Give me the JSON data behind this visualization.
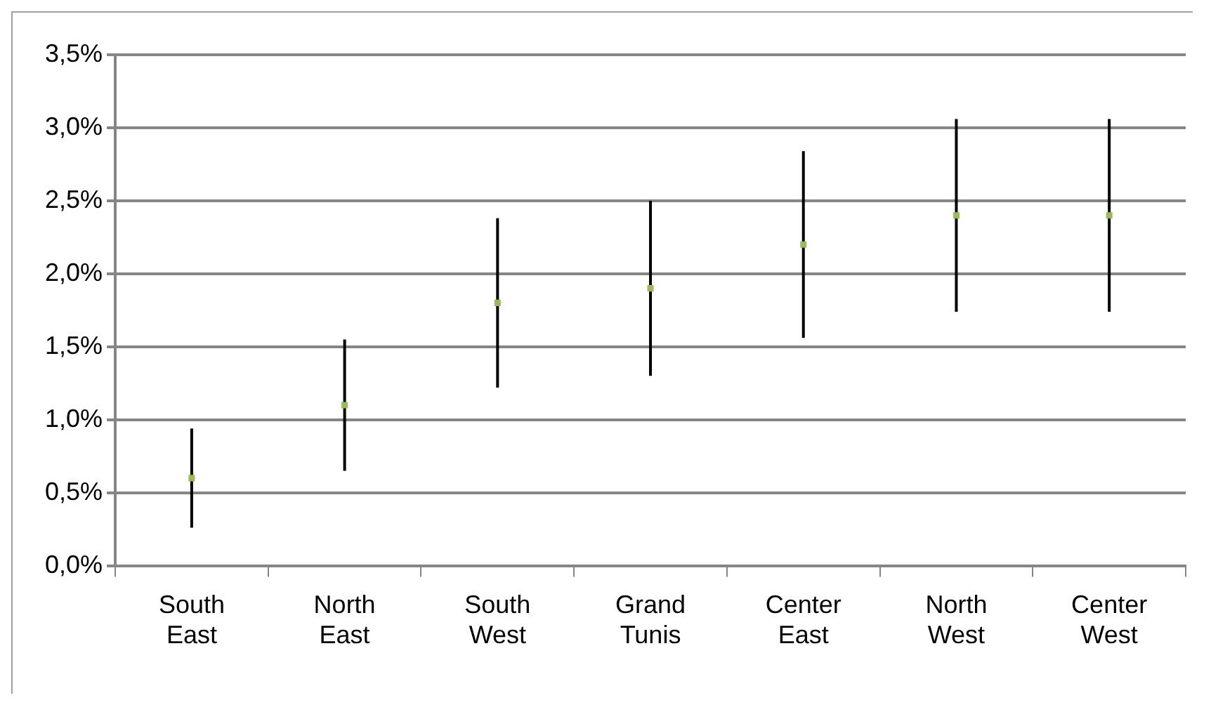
{
  "chart_data": {
    "type": "scatter",
    "categories": [
      "South East",
      "North East",
      "South West",
      "Grand Tunis",
      "Center East",
      "North West",
      "Center West"
    ],
    "series": [
      {
        "color": "#9bbb59",
        "values": [
          0.6,
          1.1,
          1.8,
          1.9,
          2.2,
          2.4,
          2.4
        ],
        "errors": [
          0.34,
          0.45,
          0.58,
          0.6,
          0.64,
          0.66,
          0.66
        ]
      }
    ],
    "ylim": [
      0,
      3.5
    ],
    "yticks": [
      {
        "value": 0,
        "label": "0,0%"
      },
      {
        "value": 0.5,
        "label": "0,5%"
      },
      {
        "value": 1,
        "label": "1,0%"
      },
      {
        "value": 1.5,
        "label": "1,5%"
      },
      {
        "value": 2,
        "label": "2,0%"
      },
      {
        "value": 2.5,
        "label": "2,5%"
      },
      {
        "value": 3,
        "label": "3,0%"
      },
      {
        "value": 3.5,
        "label": "3,5%"
      }
    ],
    "grid": "y",
    "marker": "square",
    "legend": false
  }
}
